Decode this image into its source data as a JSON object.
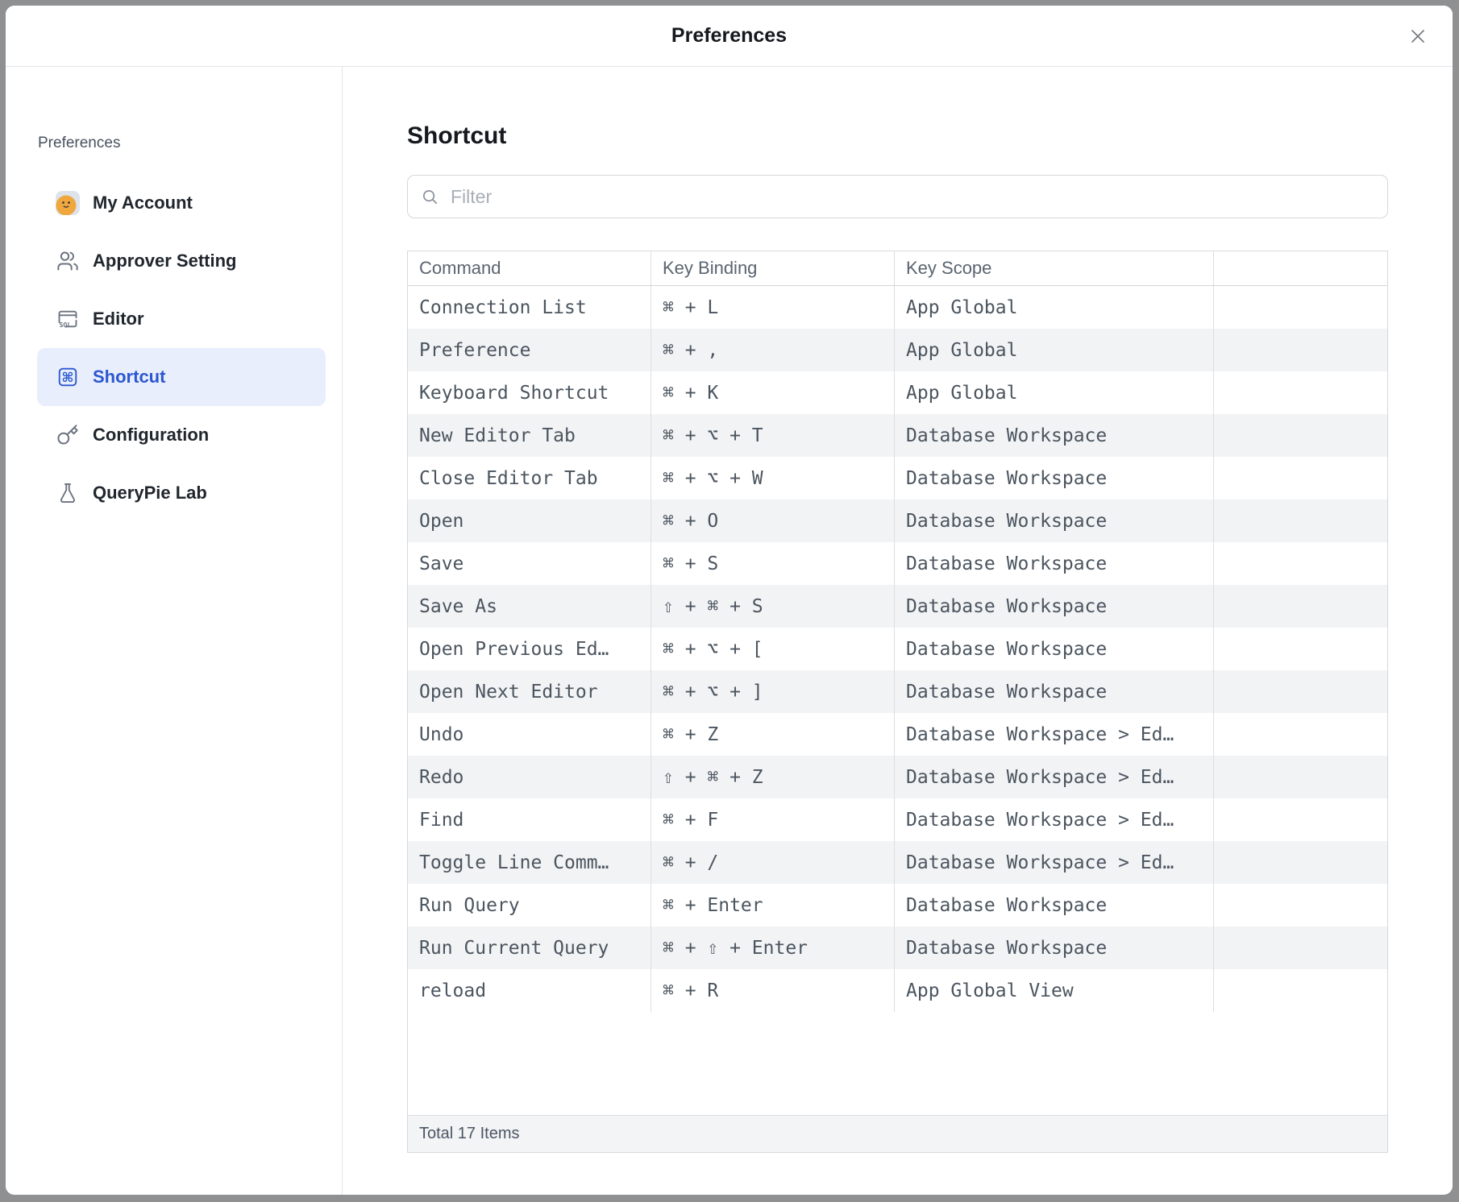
{
  "dialog": {
    "title": "Preferences"
  },
  "icons": {
    "close": "close-icon",
    "search": "search-icon",
    "avatar": "avatar-emoji-icon",
    "users": "users-icon",
    "sql_editor": "sql-editor-icon",
    "command": "command-icon",
    "key": "key-icon",
    "flask": "flask-icon"
  },
  "sidebar": {
    "section_label": "Preferences",
    "items": [
      {
        "label": "My Account",
        "selected": false
      },
      {
        "label": "Approver Setting",
        "selected": false
      },
      {
        "label": "Editor",
        "selected": false
      },
      {
        "label": "Shortcut",
        "selected": true
      },
      {
        "label": "Configuration",
        "selected": false
      },
      {
        "label": "QueryPie Lab",
        "selected": false
      }
    ]
  },
  "main": {
    "heading": "Shortcut",
    "filter": {
      "placeholder": "Filter",
      "value": ""
    },
    "table": {
      "columns": [
        "Command",
        "Key Binding",
        "Key Scope",
        ""
      ],
      "rows": [
        {
          "command": "Connection List",
          "key_binding": "⌘ + L",
          "key_scope": "App Global"
        },
        {
          "command": "Preference",
          "key_binding": "⌘ + ,",
          "key_scope": "App Global"
        },
        {
          "command": "Keyboard Shortcut",
          "key_binding": "⌘ + K",
          "key_scope": "App Global"
        },
        {
          "command": "New Editor Tab",
          "key_binding": "⌘ + ⌥ + T",
          "key_scope": "Database Workspace"
        },
        {
          "command": "Close Editor Tab",
          "key_binding": "⌘ + ⌥ + W",
          "key_scope": "Database Workspace"
        },
        {
          "command": "Open",
          "key_binding": "⌘ + O",
          "key_scope": "Database Workspace"
        },
        {
          "command": "Save",
          "key_binding": "⌘ + S",
          "key_scope": "Database Workspace"
        },
        {
          "command": "Save As",
          "key_binding": "⇧ + ⌘ + S",
          "key_scope": "Database Workspace"
        },
        {
          "command": "Open Previous Ed…",
          "key_binding": "⌘ + ⌥ + [",
          "key_scope": "Database Workspace"
        },
        {
          "command": "Open Next Editor",
          "key_binding": "⌘ + ⌥ + ]",
          "key_scope": "Database Workspace"
        },
        {
          "command": "Undo",
          "key_binding": "⌘ + Z",
          "key_scope": "Database Workspace > Ed…"
        },
        {
          "command": "Redo",
          "key_binding": "⇧ + ⌘ + Z",
          "key_scope": "Database Workspace > Ed…"
        },
        {
          "command": "Find",
          "key_binding": "⌘ + F",
          "key_scope": "Database Workspace > Ed…"
        },
        {
          "command": "Toggle Line Comm…",
          "key_binding": "⌘ + /",
          "key_scope": "Database Workspace > Ed…"
        },
        {
          "command": "Run Query",
          "key_binding": "⌘ + Enter",
          "key_scope": "Database Workspace"
        },
        {
          "command": "Run Current Query",
          "key_binding": "⌘ + ⇧ + Enter",
          "key_scope": "Database Workspace"
        },
        {
          "command": "reload",
          "key_binding": "⌘ + R",
          "key_scope": "App Global View"
        }
      ],
      "footer": "Total 17 Items"
    }
  },
  "colors": {
    "accent_blue": "#2b57d0",
    "selected_bg": "#e8eefc",
    "row_stripe": "#f2f3f5",
    "table_border": "#d6d9dc",
    "frame_gray": "#8e9092",
    "avatar_orange": "#efa73e"
  }
}
